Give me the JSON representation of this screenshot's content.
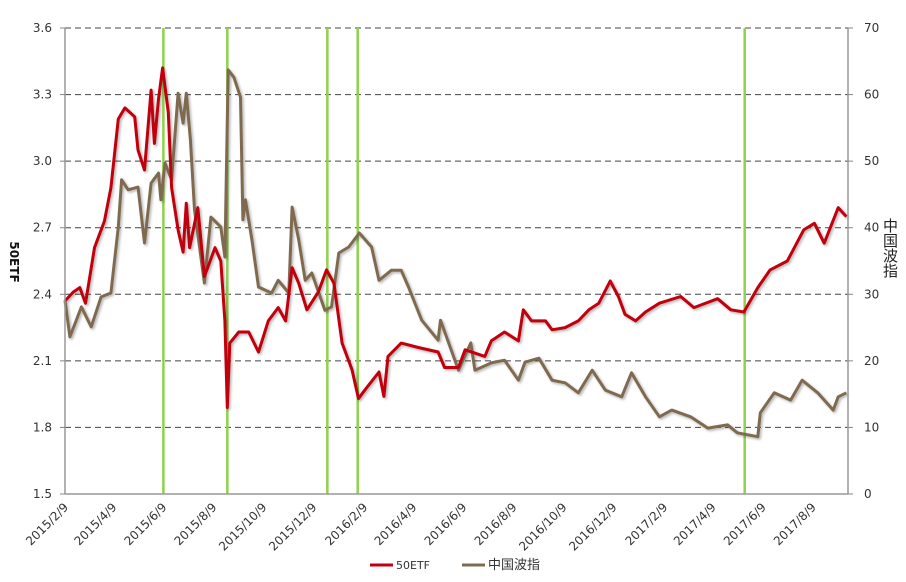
{
  "chart_data": {
    "type": "line",
    "title": "",
    "xlabel": "",
    "ylabel": "50ETF",
    "ylabel_right": "中国波指",
    "ylim": [
      1.5,
      3.6
    ],
    "ylim_right": [
      0,
      70
    ],
    "yticks": [
      "1.5",
      "1.8",
      "2.1",
      "2.4",
      "2.7",
      "3.0",
      "3.3",
      "3.6"
    ],
    "yticks_right": [
      "0",
      "10",
      "20",
      "30",
      "40",
      "50",
      "60",
      "70"
    ],
    "xrange": [
      "2015-02-09",
      "2017-09-21"
    ],
    "xticks": [
      "2015/2/9",
      "2015/4/9",
      "2015/6/9",
      "2015/8/9",
      "2015/10/9",
      "2015/12/9",
      "2016/2/9",
      "2016/4/9",
      "2016/6/9",
      "2016/8/9",
      "2016/10/9",
      "2016/12/9",
      "2017/2/9",
      "2017/4/9",
      "2017/6/9",
      "2017/8/9"
    ],
    "grid": "horizontal dashed",
    "legend": "bottom",
    "vertical_markers": [
      "2015-06-09",
      "2015-08-26",
      "2015-12-26",
      "2016-02-01",
      "2017-05-18"
    ],
    "colors": {
      "50ETF": "#c00010",
      "中国波指": "#7f6b50",
      "markers": "#8ed14c"
    },
    "series": [
      {
        "name": "50ETF",
        "axis": "left",
        "points": [
          [
            "2015-02-09",
            2.37
          ],
          [
            "2015-02-19",
            2.41
          ],
          [
            "2015-02-27",
            2.43
          ],
          [
            "2015-03-06",
            2.36
          ],
          [
            "2015-03-17",
            2.61
          ],
          [
            "2015-03-29",
            2.73
          ],
          [
            "2015-04-06",
            2.88
          ],
          [
            "2015-04-15",
            3.19
          ],
          [
            "2015-04-23",
            3.24
          ],
          [
            "2015-05-05",
            3.2
          ],
          [
            "2015-05-09",
            3.05
          ],
          [
            "2015-05-17",
            2.96
          ],
          [
            "2015-05-25",
            3.32
          ],
          [
            "2015-05-29",
            3.08
          ],
          [
            "2015-06-03",
            3.28
          ],
          [
            "2015-06-08",
            3.42
          ],
          [
            "2015-06-15",
            3.22
          ],
          [
            "2015-06-19",
            2.88
          ],
          [
            "2015-06-27",
            2.69
          ],
          [
            "2015-07-03",
            2.59
          ],
          [
            "2015-07-07",
            2.81
          ],
          [
            "2015-07-11",
            2.61
          ],
          [
            "2015-07-21",
            2.79
          ],
          [
            "2015-07-29",
            2.48
          ],
          [
            "2015-08-11",
            2.61
          ],
          [
            "2015-08-18",
            2.55
          ],
          [
            "2015-08-23",
            2.28
          ],
          [
            "2015-08-26",
            1.89
          ],
          [
            "2015-08-29",
            2.18
          ],
          [
            "2015-09-09",
            2.23
          ],
          [
            "2015-09-21",
            2.23
          ],
          [
            "2015-10-03",
            2.14
          ],
          [
            "2015-10-15",
            2.28
          ],
          [
            "2015-10-27",
            2.34
          ],
          [
            "2015-11-05",
            2.28
          ],
          [
            "2015-11-13",
            2.52
          ],
          [
            "2015-11-21",
            2.45
          ],
          [
            "2015-12-01",
            2.33
          ],
          [
            "2015-12-15",
            2.41
          ],
          [
            "2015-12-25",
            2.51
          ],
          [
            "2016-01-03",
            2.45
          ],
          [
            "2016-01-13",
            2.18
          ],
          [
            "2016-01-25",
            2.06
          ],
          [
            "2016-02-02",
            1.93
          ],
          [
            "2016-02-10",
            1.97
          ],
          [
            "2016-02-27",
            2.05
          ],
          [
            "2016-03-04",
            1.94
          ],
          [
            "2016-03-09",
            2.12
          ],
          [
            "2016-03-25",
            2.18
          ],
          [
            "2016-04-15",
            2.16
          ],
          [
            "2016-05-09",
            2.14
          ],
          [
            "2016-05-17",
            2.07
          ],
          [
            "2016-06-03",
            2.07
          ],
          [
            "2016-06-11",
            2.15
          ],
          [
            "2016-07-05",
            2.12
          ],
          [
            "2016-07-13",
            2.19
          ],
          [
            "2016-07-29",
            2.23
          ],
          [
            "2016-08-15",
            2.19
          ],
          [
            "2016-08-21",
            2.33
          ],
          [
            "2016-08-31",
            2.28
          ],
          [
            "2016-09-17",
            2.28
          ],
          [
            "2016-09-25",
            2.24
          ],
          [
            "2016-10-11",
            2.25
          ],
          [
            "2016-10-27",
            2.28
          ],
          [
            "2016-11-09",
            2.33
          ],
          [
            "2016-11-21",
            2.36
          ],
          [
            "2016-12-05",
            2.46
          ],
          [
            "2016-12-15",
            2.39
          ],
          [
            "2016-12-23",
            2.31
          ],
          [
            "2017-01-05",
            2.28
          ],
          [
            "2017-01-17",
            2.32
          ],
          [
            "2017-02-03",
            2.36
          ],
          [
            "2017-03-01",
            2.39
          ],
          [
            "2017-03-17",
            2.34
          ],
          [
            "2017-04-15",
            2.38
          ],
          [
            "2017-05-01",
            2.33
          ],
          [
            "2017-05-17",
            2.32
          ],
          [
            "2017-06-03",
            2.43
          ],
          [
            "2017-06-18",
            2.51
          ],
          [
            "2017-07-09",
            2.55
          ],
          [
            "2017-07-29",
            2.69
          ],
          [
            "2017-08-11",
            2.72
          ],
          [
            "2017-08-23",
            2.63
          ],
          [
            "2017-09-09",
            2.79
          ],
          [
            "2017-09-19",
            2.75
          ]
        ]
      },
      {
        "name": "中国波指",
        "axis": "right",
        "points": [
          [
            "2015-02-09",
            29.1
          ],
          [
            "2015-02-15",
            23.6
          ],
          [
            "2015-03-01",
            28.1
          ],
          [
            "2015-03-13",
            25.1
          ],
          [
            "2015-03-25",
            29.6
          ],
          [
            "2015-04-06",
            30.2
          ],
          [
            "2015-04-15",
            40.1
          ],
          [
            "2015-04-19",
            47.2
          ],
          [
            "2015-04-27",
            45.7
          ],
          [
            "2015-05-09",
            46.1
          ],
          [
            "2015-05-17",
            37.7
          ],
          [
            "2015-05-25",
            46.7
          ],
          [
            "2015-06-03",
            48.2
          ],
          [
            "2015-06-06",
            44.2
          ],
          [
            "2015-06-11",
            49.7
          ],
          [
            "2015-06-19",
            47.2
          ],
          [
            "2015-06-27",
            60.2
          ],
          [
            "2015-07-03",
            55.7
          ],
          [
            "2015-07-07",
            60.2
          ],
          [
            "2015-07-12",
            53.2
          ],
          [
            "2015-07-17",
            42.7
          ],
          [
            "2015-07-29",
            31.7
          ],
          [
            "2015-08-06",
            41.6
          ],
          [
            "2015-08-18",
            40.1
          ],
          [
            "2015-08-23",
            35.6
          ],
          [
            "2015-08-27",
            63.7
          ],
          [
            "2015-09-03",
            62.6
          ],
          [
            "2015-09-11",
            59.6
          ],
          [
            "2015-09-14",
            41.2
          ],
          [
            "2015-09-17",
            44.2
          ],
          [
            "2015-09-25",
            38.2
          ],
          [
            "2015-10-03",
            31.1
          ],
          [
            "2015-10-19",
            30.2
          ],
          [
            "2015-10-27",
            32.1
          ],
          [
            "2015-11-09",
            30.2
          ],
          [
            "2015-11-13",
            43.1
          ],
          [
            "2015-11-21",
            38.2
          ],
          [
            "2015-11-29",
            32.1
          ],
          [
            "2015-12-07",
            33.2
          ],
          [
            "2015-12-23",
            27.6
          ],
          [
            "2015-12-31",
            28.1
          ],
          [
            "2016-01-09",
            36.2
          ],
          [
            "2016-01-21",
            37.1
          ],
          [
            "2016-02-03",
            39.2
          ],
          [
            "2016-02-18",
            37.1
          ],
          [
            "2016-02-27",
            32.1
          ],
          [
            "2016-03-13",
            33.6
          ],
          [
            "2016-03-25",
            33.6
          ],
          [
            "2016-04-03",
            31.1
          ],
          [
            "2016-04-19",
            26.1
          ],
          [
            "2016-05-09",
            23.1
          ],
          [
            "2016-05-12",
            26.1
          ],
          [
            "2016-06-03",
            18.6
          ],
          [
            "2016-06-18",
            22.7
          ],
          [
            "2016-06-23",
            18.6
          ],
          [
            "2016-07-13",
            19.7
          ],
          [
            "2016-07-29",
            20.1
          ],
          [
            "2016-08-15",
            17.1
          ],
          [
            "2016-08-23",
            19.8
          ],
          [
            "2016-09-09",
            20.4
          ],
          [
            "2016-09-25",
            17.1
          ],
          [
            "2016-10-11",
            16.7
          ],
          [
            "2016-10-27",
            15.2
          ],
          [
            "2016-11-13",
            18.6
          ],
          [
            "2016-11-29",
            15.6
          ],
          [
            "2016-12-19",
            14.6
          ],
          [
            "2016-12-31",
            18.2
          ],
          [
            "2017-01-17",
            14.6
          ],
          [
            "2017-02-03",
            11.6
          ],
          [
            "2017-02-18",
            12.6
          ],
          [
            "2017-03-13",
            11.6
          ],
          [
            "2017-04-03",
            9.9
          ],
          [
            "2017-04-27",
            10.4
          ],
          [
            "2017-05-09",
            9.2
          ],
          [
            "2017-06-03",
            8.6
          ],
          [
            "2017-06-06",
            12.2
          ],
          [
            "2017-06-23",
            15.2
          ],
          [
            "2017-07-13",
            14.1
          ],
          [
            "2017-07-27",
            17.1
          ],
          [
            "2017-08-15",
            15.2
          ],
          [
            "2017-09-03",
            12.6
          ],
          [
            "2017-09-09",
            14.6
          ],
          [
            "2017-09-19",
            15.2
          ]
        ]
      }
    ]
  },
  "legend": {
    "items": [
      "50ETF",
      "中国波指"
    ]
  }
}
